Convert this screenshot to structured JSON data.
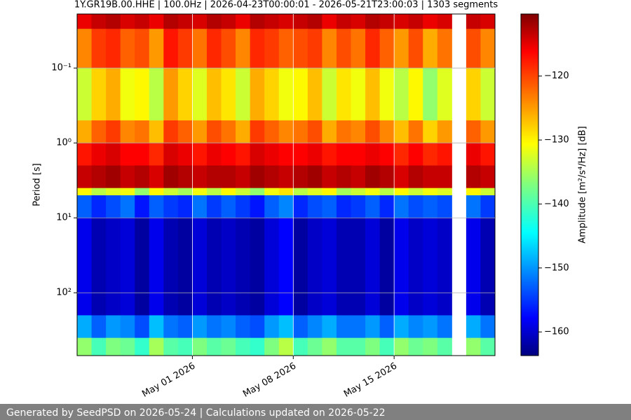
{
  "chart_data": {
    "type": "heatmap",
    "title": "1Y.GR19B.00.HHE | 100.0Hz | 2026-04-23T00:00:01 - 2026-05-21T23:00:03 | 1303 segments",
    "y_label": "Period [s]",
    "colorbar_label": "Amplitude [m²/s⁴/Hz] [dB]",
    "colormap": "jet",
    "log_y": true,
    "y_inverted": true,
    "grid": true,
    "x": [
      "2026-04-23",
      "2026-04-24",
      "2026-04-25",
      "2026-04-26",
      "2026-04-27",
      "2026-04-28",
      "2026-04-29",
      "2026-04-30",
      "2026-05-01",
      "2026-05-02",
      "2026-05-03",
      "2026-05-04",
      "2026-05-05",
      "2026-05-06",
      "2026-05-07",
      "2026-05-08",
      "2026-05-09",
      "2026-05-10",
      "2026-05-11",
      "2026-05-12",
      "2026-05-13",
      "2026-05-14",
      "2026-05-15",
      "2026-05-16",
      "2026-05-17",
      "2026-05-18",
      "2026-05-19",
      "2026-05-20",
      "2026-05-21"
    ],
    "xlim": [
      "2026-04-23",
      "2026-05-22"
    ],
    "xticks": [
      {
        "value": "2026-05-01",
        "label": "May 01 2026"
      },
      {
        "value": "2026-05-08",
        "label": "May 08 2026"
      },
      {
        "value": "2026-05-15",
        "label": "May 15 2026"
      }
    ],
    "y_bins": [
      0.019,
      0.03,
      0.1,
      0.5,
      1,
      2,
      4,
      5,
      10,
      200,
      400,
      690
    ],
    "ylim": [
      0.019,
      690
    ],
    "yticks": [
      {
        "value": 0.1,
        "label": "10⁻¹"
      },
      {
        "value": 1,
        "label": "10⁰"
      },
      {
        "value": 10,
        "label": "10¹"
      },
      {
        "value": 100,
        "label": "10²"
      }
    ],
    "zlim": [
      -163.7,
      -110.3
    ],
    "zticks": [
      {
        "value": -160,
        "label": "−160"
      },
      {
        "value": -150,
        "label": "−150"
      },
      {
        "value": -140,
        "label": "−140"
      },
      {
        "value": -130,
        "label": "−130"
      },
      {
        "value": -120,
        "label": "−120"
      }
    ],
    "z": [
      [
        -116,
        -114,
        -113,
        -115,
        -114,
        -116,
        -113,
        -114,
        -115,
        -113,
        -114,
        -116,
        -113,
        -114,
        -115,
        -114,
        -113,
        -116,
        -114,
        -115,
        -113,
        -114,
        -115,
        -114,
        -116,
        -115,
        null,
        -114,
        -115
      ],
      [
        -124,
        -120,
        -119,
        -122,
        -121,
        -125,
        -118,
        -120,
        -123,
        -119,
        -121,
        -124,
        -119,
        -120,
        -122,
        -121,
        -120,
        -124,
        -121,
        -123,
        -119,
        -122,
        -125,
        -121,
        -126,
        -123,
        null,
        -121,
        -124
      ],
      [
        -133,
        -128,
        -126,
        -131,
        -130,
        -134,
        -125,
        -128,
        -132,
        -127,
        -129,
        -133,
        -126,
        -128,
        -131,
        -130,
        -127,
        -133,
        -129,
        -131,
        -127,
        -131,
        -134,
        -130,
        -136,
        -132,
        null,
        -128,
        -133
      ],
      [
        -126,
        -122,
        -120,
        -124,
        -123,
        -127,
        -120,
        -122,
        -125,
        -121,
        -123,
        -126,
        -120,
        -122,
        -124,
        -123,
        -121,
        -126,
        -123,
        -124,
        -121,
        -124,
        -127,
        -123,
        -128,
        -125,
        null,
        -122,
        -125
      ],
      [
        -118,
        -116,
        -115,
        -117,
        -117,
        -119,
        -115,
        -116,
        -118,
        -116,
        -117,
        -118,
        -115,
        -116,
        -117,
        -117,
        -116,
        -118,
        -117,
        -117,
        -116,
        -117,
        -119,
        -117,
        -119,
        -118,
        null,
        -116,
        -118
      ],
      [
        -114,
        -113,
        -112,
        -114,
        -113,
        -115,
        -112,
        -113,
        -114,
        -113,
        -113,
        -114,
        -112,
        -113,
        -114,
        -113,
        -112,
        -114,
        -113,
        -114,
        -112,
        -113,
        -115,
        -113,
        -114,
        -114,
        null,
        -113,
        -114
      ],
      [
        -130,
        -134,
        -132,
        -131,
        -136,
        -130,
        -133,
        -135,
        -131,
        -134,
        -130,
        -133,
        -136,
        -131,
        -129,
        -134,
        -132,
        -130,
        -135,
        -133,
        -131,
        -134,
        -130,
        -133,
        -131,
        -132,
        null,
        -130,
        -133
      ],
      [
        -152,
        -155,
        -153,
        -151,
        -156,
        -152,
        -154,
        -155,
        -151,
        -154,
        -152,
        -154,
        -156,
        -152,
        -150,
        -155,
        -153,
        -152,
        -155,
        -154,
        -152,
        -155,
        -151,
        -153,
        -152,
        -153,
        null,
        -151,
        -154
      ],
      [
        -158,
        -161,
        -160,
        -159,
        -162,
        -158,
        -161,
        -162,
        -159,
        -161,
        -160,
        -161,
        -162,
        -159,
        -157,
        -162,
        -160,
        -159,
        -161,
        -161,
        -159,
        -162,
        -158,
        -160,
        -159,
        -160,
        null,
        -158,
        -161
      ],
      [
        -148,
        -152,
        -149,
        -150,
        -153,
        -147,
        -151,
        -152,
        -149,
        -151,
        -150,
        -152,
        -153,
        -149,
        -147,
        -152,
        -150,
        -148,
        -151,
        -151,
        -149,
        -152,
        -148,
        -150,
        -149,
        -151,
        null,
        -148,
        -151
      ],
      [
        -136,
        -140,
        -137,
        -138,
        -141,
        -135,
        -139,
        -140,
        -137,
        -139,
        -138,
        -140,
        -141,
        -137,
        -134,
        -140,
        -138,
        -136,
        -139,
        -139,
        -137,
        -140,
        -136,
        -138,
        -137,
        -139,
        null,
        -136,
        -139
      ]
    ]
  },
  "footer": {
    "text": "Generated by SeedPSD on 2026-05-24 | Calculations updated on 2026-05-22"
  }
}
